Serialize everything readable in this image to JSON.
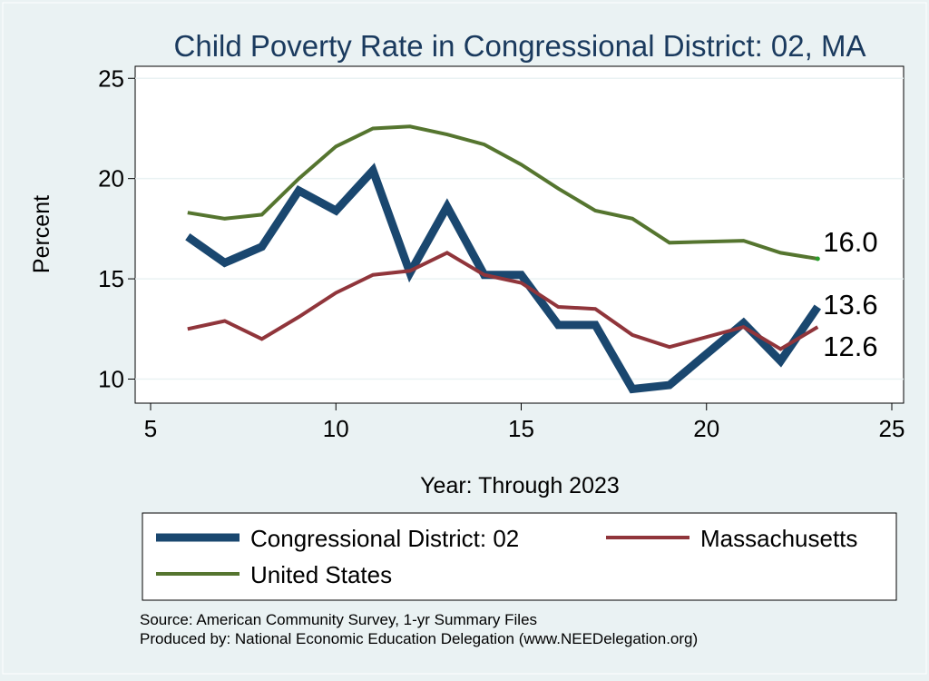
{
  "chart_data": {
    "type": "line",
    "title": "Child Poverty Rate in Congressional District:  02, MA",
    "xlabel": "Year: Through 2023",
    "ylabel": "Percent",
    "xlim": [
      5,
      25
    ],
    "ylim": [
      8.8,
      25.6
    ],
    "xticks": [
      5,
      10,
      15,
      20,
      25
    ],
    "yticks": [
      10,
      15,
      20,
      25
    ],
    "grid": true,
    "legend_position": "bottom",
    "series": [
      {
        "name": "Congressional District:  02",
        "color": "#1a476f",
        "width": 9,
        "points": [
          [
            6,
            17.1
          ],
          [
            7,
            15.8
          ],
          [
            8,
            16.6
          ],
          [
            9,
            19.4
          ],
          [
            10,
            18.4
          ],
          [
            11,
            20.4
          ],
          [
            12,
            15.3
          ],
          [
            13,
            18.6
          ],
          [
            14,
            15.2
          ],
          [
            15,
            15.2
          ],
          [
            16,
            12.7
          ],
          [
            17,
            12.7
          ],
          [
            18,
            9.5
          ],
          [
            19,
            9.7
          ],
          [
            21,
            12.8
          ],
          [
            22,
            10.9
          ],
          [
            23,
            13.6
          ]
        ],
        "end_label": "13.6"
      },
      {
        "name": "Massachusetts",
        "color": "#90353b",
        "width": 4,
        "points": [
          [
            6,
            12.5
          ],
          [
            7,
            12.9
          ],
          [
            8,
            12.0
          ],
          [
            9,
            13.1
          ],
          [
            10,
            14.3
          ],
          [
            11,
            15.2
          ],
          [
            12,
            15.4
          ],
          [
            13,
            16.3
          ],
          [
            14,
            15.2
          ],
          [
            15,
            14.8
          ],
          [
            16,
            13.6
          ],
          [
            17,
            13.5
          ],
          [
            18,
            12.2
          ],
          [
            19,
            11.6
          ],
          [
            21,
            12.6
          ],
          [
            22,
            11.5
          ],
          [
            23,
            12.6
          ]
        ],
        "end_label": "12.6"
      },
      {
        "name": "United States",
        "color": "#55752f",
        "width": 4,
        "points": [
          [
            6,
            18.3
          ],
          [
            7,
            18.0
          ],
          [
            8,
            18.2
          ],
          [
            9,
            20.0
          ],
          [
            10,
            21.6
          ],
          [
            11,
            22.5
          ],
          [
            12,
            22.6
          ],
          [
            13,
            22.2
          ],
          [
            14,
            21.7
          ],
          [
            15,
            20.7
          ],
          [
            16,
            19.5
          ],
          [
            17,
            18.4
          ],
          [
            18,
            18.0
          ],
          [
            19,
            16.8
          ],
          [
            21,
            16.9
          ],
          [
            22,
            16.3
          ],
          [
            23,
            16.0
          ]
        ],
        "end_label": "16.0"
      }
    ]
  },
  "source": {
    "line1": "Source: American Community Survey, 1-yr Summary Files",
    "line2": "Produced by: National Economic Education Delegation (www.NEEDelegation.org)"
  }
}
